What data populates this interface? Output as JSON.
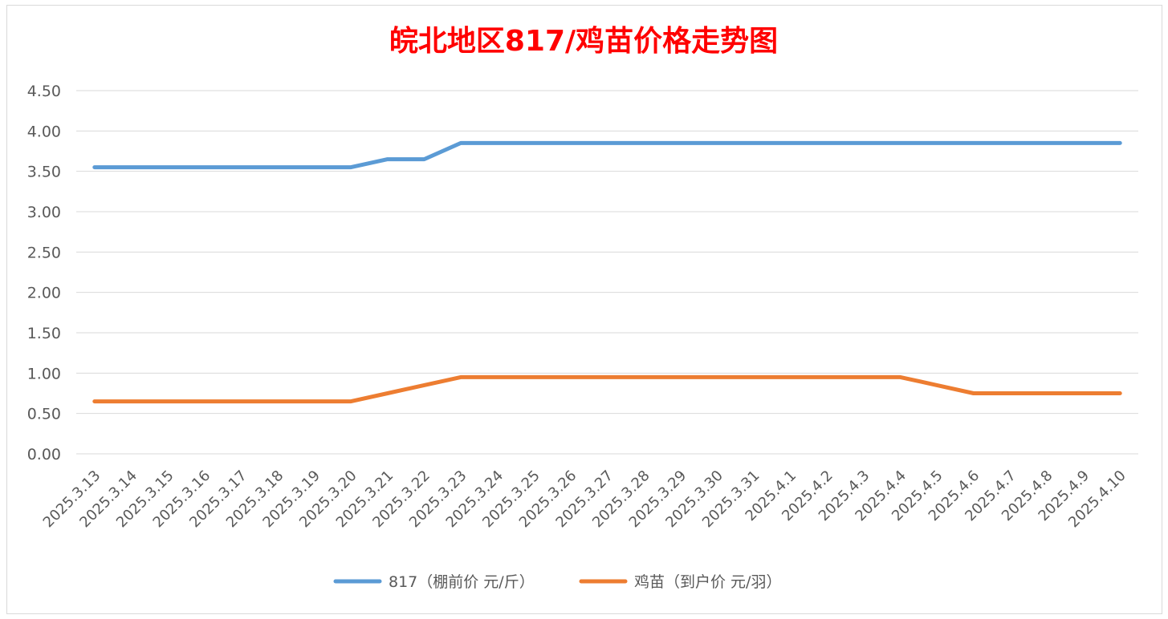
{
  "chart_data": {
    "type": "line",
    "title": "皖北地区817/鸡苗价格走势图",
    "xlabel": "",
    "ylabel": "",
    "ylim": [
      0,
      4.5
    ],
    "ytick_labels": [
      "0.00",
      "0.50",
      "1.00",
      "1.50",
      "2.00",
      "2.50",
      "3.00",
      "3.50",
      "4.00",
      "4.50"
    ],
    "grid": true,
    "legend_position": "bottom",
    "categories": [
      "2025.3.13",
      "2025.3.14",
      "2025.3.15",
      "2025.3.16",
      "2025.3.17",
      "2025.3.18",
      "2025.3.19",
      "2025.3.20",
      "2025.3.21",
      "2025.3.22",
      "2025.3.23",
      "2025.3.24",
      "2025.3.25",
      "2025.3.26",
      "2025.3.27",
      "2025.3.28",
      "2025.3.29",
      "2025.3.30",
      "2025.3.31",
      "2025.4.1",
      "2025.4.2",
      "2025.4.3",
      "2025.4.4",
      "2025.4.5",
      "2025.4.6",
      "2025.4.7",
      "2025.4.8",
      "2025.4.9",
      "2025.4.10"
    ],
    "series": [
      {
        "name": "817（棚前价 元/斤）",
        "color": "#5b9bd5",
        "values": [
          3.55,
          3.55,
          3.55,
          3.55,
          3.55,
          3.55,
          3.55,
          3.55,
          3.65,
          3.65,
          3.85,
          3.85,
          3.85,
          3.85,
          3.85,
          3.85,
          3.85,
          3.85,
          3.85,
          3.85,
          3.85,
          3.85,
          3.85,
          3.85,
          3.85,
          3.85,
          3.85,
          3.85,
          3.85
        ]
      },
      {
        "name": "鸡苗（到户价 元/羽）",
        "color": "#ed7d31",
        "values": [
          0.65,
          0.65,
          0.65,
          0.65,
          0.65,
          0.65,
          0.65,
          0.65,
          0.75,
          0.85,
          0.95,
          0.95,
          0.95,
          0.95,
          0.95,
          0.95,
          0.95,
          0.95,
          0.95,
          0.95,
          0.95,
          0.95,
          0.95,
          0.85,
          0.75,
          0.75,
          0.75,
          0.75,
          0.75
        ]
      }
    ]
  }
}
